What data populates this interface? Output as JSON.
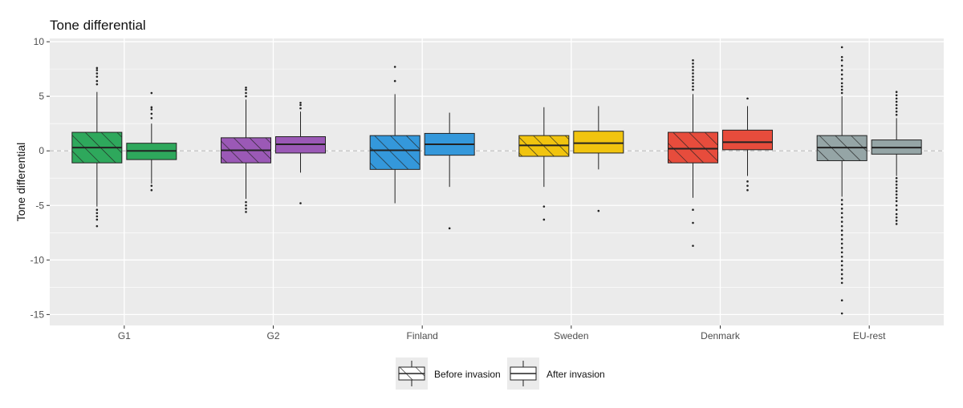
{
  "chart_data": {
    "type": "boxplot",
    "title": "Tone differential",
    "xlabel": "",
    "ylabel": "Tone differential",
    "ylim": [
      -16,
      10.3
    ],
    "yticks": [
      10,
      5,
      0,
      -5,
      -10,
      -15
    ],
    "grid": true,
    "reference_line": 0,
    "legend_position": "bottom",
    "categories": [
      "G1",
      "G2",
      "Finland",
      "Sweden",
      "Denmark",
      "EU-rest"
    ],
    "colors": [
      "#2ea85c",
      "#9b59b6",
      "#3498db",
      "#f1c40f",
      "#e74c3c",
      "#95a5a6"
    ],
    "series": [
      {
        "name": "Before invasion",
        "pattern": "hatched",
        "boxes": [
          {
            "q1": -1.1,
            "median": 0.3,
            "q3": 1.7,
            "whisker_low": -5.1,
            "whisker_high": 5.4,
            "outliers": [
              -5.4,
              -5.7,
              -6.0,
              -6.3,
              -6.9,
              6.1,
              6.4,
              6.8,
              7.1,
              7.4,
              7.6
            ]
          },
          {
            "q1": -1.1,
            "median": 0.05,
            "q3": 1.2,
            "whisker_low": -4.4,
            "whisker_high": 4.7,
            "outliers": [
              -4.7,
              -5.0,
              -5.3,
              -5.6,
              5.0,
              5.3,
              5.6,
              5.8
            ]
          },
          {
            "q1": -1.7,
            "median": 0.05,
            "q3": 1.4,
            "whisker_low": -4.8,
            "whisker_high": 5.2,
            "outliers": [
              6.4,
              7.7
            ]
          },
          {
            "q1": -0.5,
            "median": 0.5,
            "q3": 1.4,
            "whisker_low": -3.3,
            "whisker_high": 4.0,
            "outliers": [
              -5.1,
              -6.3
            ]
          },
          {
            "q1": -1.1,
            "median": 0.2,
            "q3": 1.7,
            "whisker_low": -4.3,
            "whisker_high": 5.2,
            "outliers": [
              -5.4,
              -6.6,
              -8.7,
              5.6,
              5.9,
              6.2,
              6.5,
              6.8,
              7.1,
              7.4,
              7.7,
              8.0,
              8.3
            ]
          },
          {
            "q1": -0.9,
            "median": 0.3,
            "q3": 1.4,
            "whisker_low": -4.2,
            "whisker_high": 5.0,
            "outliers": [
              -4.5,
              -4.9,
              -5.3,
              -5.7,
              -6.1,
              -6.5,
              -6.9,
              -7.3,
              -7.7,
              -8.1,
              -8.5,
              -8.9,
              -9.3,
              -9.7,
              -10.1,
              -10.5,
              -10.9,
              -11.3,
              -11.7,
              -12.1,
              -13.7,
              -14.9,
              5.3,
              5.6,
              5.9,
              6.2,
              6.6,
              7.0,
              7.4,
              7.8,
              8.3,
              8.6,
              9.5
            ]
          }
        ]
      },
      {
        "name": "After invasion",
        "pattern": "solid",
        "boxes": [
          {
            "q1": -0.8,
            "median": 0.0,
            "q3": 0.7,
            "whisker_low": -3.0,
            "whisker_high": 2.5,
            "outliers": [
              -3.2,
              -3.6,
              3.0,
              3.4,
              3.8,
              4.0,
              5.3
            ]
          },
          {
            "q1": -0.2,
            "median": 0.6,
            "q3": 1.3,
            "whisker_low": -2.0,
            "whisker_high": 3.6,
            "outliers": [
              -4.8,
              3.9,
              4.2,
              4.4
            ]
          },
          {
            "q1": -0.4,
            "median": 0.6,
            "q3": 1.6,
            "whisker_low": -3.3,
            "whisker_high": 3.5,
            "outliers": [
              -7.1
            ]
          },
          {
            "q1": -0.2,
            "median": 0.7,
            "q3": 1.8,
            "whisker_low": -1.7,
            "whisker_high": 4.1,
            "outliers": [
              -5.5
            ]
          },
          {
            "q1": 0.1,
            "median": 0.8,
            "q3": 1.9,
            "whisker_low": -2.3,
            "whisker_high": 4.1,
            "outliers": [
              -2.8,
              -3.2,
              -3.6,
              4.8
            ]
          },
          {
            "q1": -0.3,
            "median": 0.3,
            "q3": 1.0,
            "whisker_low": -2.3,
            "whisker_high": 3.0,
            "outliers": [
              -2.5,
              -2.8,
              -3.1,
              -3.4,
              -3.7,
              -4.0,
              -4.3,
              -4.6,
              -5.0,
              -5.4,
              -5.8,
              -6.1,
              -6.4,
              -6.7,
              3.3,
              3.6,
              3.9,
              4.2,
              4.5,
              4.8,
              5.1,
              5.4
            ]
          }
        ]
      }
    ]
  }
}
